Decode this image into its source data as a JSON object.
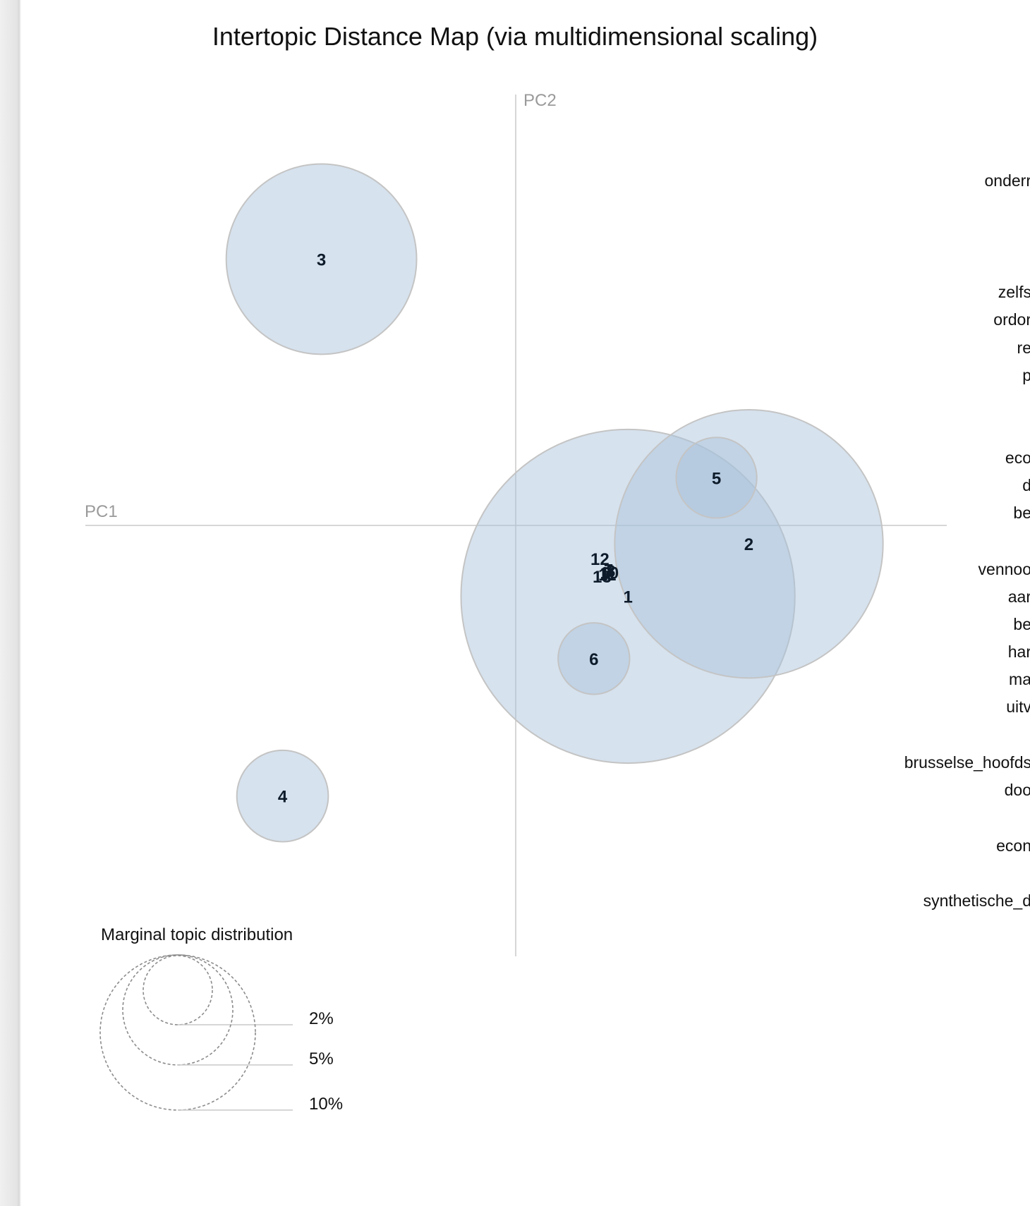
{
  "chart_data": {
    "type": "scatter",
    "title": "Intertopic Distance Map (via multidimensional scaling)",
    "xlabel": "PC1",
    "ylabel": "PC2",
    "bubble_color": "#a9c3dc",
    "bubble_stroke": "#c4c4c4",
    "topics": [
      {
        "id": "1",
        "x": 0.26,
        "y": -0.165,
        "size": 24.0
      },
      {
        "id": "2",
        "x": 0.54,
        "y": -0.043,
        "size": 15.5
      },
      {
        "id": "3",
        "x": -0.45,
        "y": 0.62,
        "size": 7.8
      },
      {
        "id": "4",
        "x": -0.54,
        "y": -0.63,
        "size": 1.8
      },
      {
        "id": "5",
        "x": 0.465,
        "y": 0.111,
        "size": 1.4
      },
      {
        "id": "6",
        "x": 0.181,
        "y": -0.31,
        "size": 1.1
      },
      {
        "id": "12",
        "x": 0.195,
        "y": -0.077,
        "size": 0
      },
      {
        "id": "7",
        "x": 0.215,
        "y": -0.103,
        "size": 0
      },
      {
        "id": "8",
        "x": 0.22,
        "y": -0.105,
        "size": 0
      },
      {
        "id": "9",
        "x": 0.21,
        "y": -0.11,
        "size": 0
      },
      {
        "id": "10",
        "x": 0.217,
        "y": -0.109,
        "size": 0
      },
      {
        "id": "11",
        "x": 0.212,
        "y": -0.113,
        "size": 0
      },
      {
        "id": "13",
        "x": 0.2,
        "y": -0.118,
        "size": 0
      }
    ],
    "legend": {
      "title": "Marginal topic distribution",
      "items": [
        {
          "label": "2%",
          "value": 2
        },
        {
          "label": "5%",
          "value": 5
        },
        {
          "label": "10%",
          "value": 10
        }
      ]
    }
  },
  "terms_panel": {
    "visible_fragments": [
      "onderr",
      "zelfs",
      "ordor",
      "re",
      "p",
      "eco",
      "d",
      "be",
      "vennoo",
      "aar",
      "be",
      "har",
      "ma",
      "uitv",
      "brusselse_hoofds",
      "doo",
      "econ",
      "synthetische_d"
    ]
  }
}
